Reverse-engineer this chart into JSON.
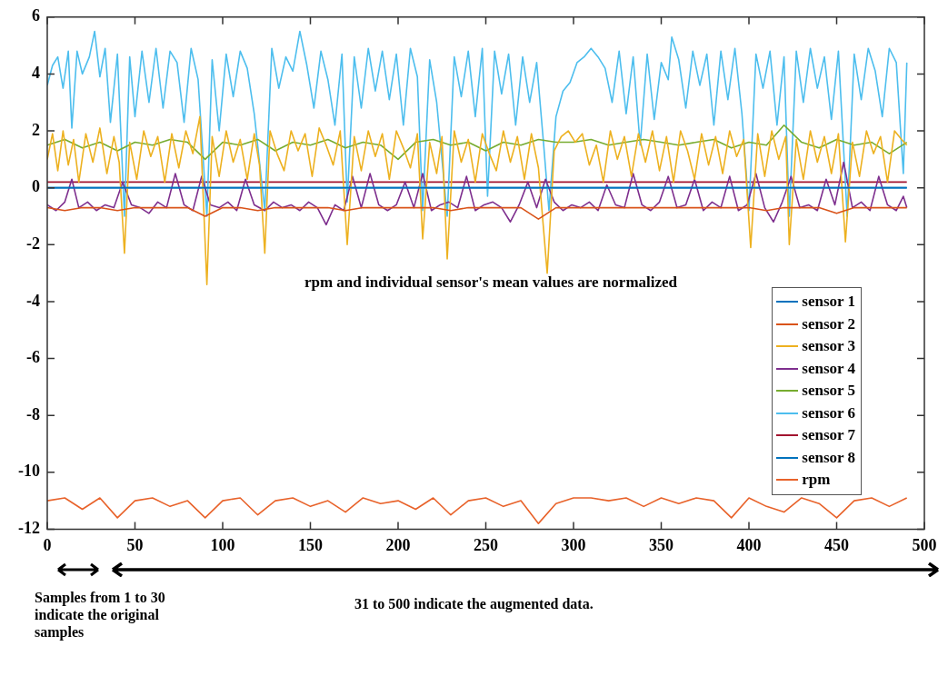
{
  "chart_data": {
    "type": "line",
    "xlim": [
      0,
      500
    ],
    "xticks": [
      0,
      50,
      100,
      150,
      200,
      250,
      300,
      350,
      400,
      450,
      500
    ],
    "ylim": [
      -12,
      6
    ],
    "yticks": [
      -12,
      -10,
      -8,
      -6,
      -4,
      -2,
      0,
      2,
      4,
      6
    ],
    "legend": "right",
    "annotations": [
      "rpm and individual sensor's mean values are normalized",
      "Samples from 1 to 30 indicate the original samples",
      "31 to 500 indicate the augmented data."
    ],
    "series": [
      {
        "name": "sensor 1",
        "color": "#0072bd",
        "x": [
          0,
          490
        ],
        "values": [
          0,
          0
        ]
      },
      {
        "name": "sensor 2",
        "color": "#d95319",
        "x": [
          0,
          10,
          20,
          30,
          40,
          50,
          60,
          70,
          80,
          90,
          100,
          110,
          120,
          130,
          140,
          150,
          160,
          170,
          180,
          190,
          200,
          210,
          220,
          230,
          240,
          250,
          260,
          270,
          280,
          290,
          300,
          310,
          320,
          330,
          340,
          350,
          360,
          370,
          380,
          390,
          400,
          410,
          420,
          430,
          440,
          450,
          460,
          470,
          480,
          490
        ],
        "values": [
          -0.7,
          -0.8,
          -0.7,
          -0.7,
          -0.8,
          -0.7,
          -0.7,
          -0.7,
          -0.7,
          -1.0,
          -0.7,
          -0.7,
          -0.8,
          -0.7,
          -0.7,
          -0.7,
          -0.7,
          -0.8,
          -0.7,
          -0.7,
          -0.7,
          -0.7,
          -0.7,
          -0.8,
          -0.7,
          -0.7,
          -0.7,
          -0.7,
          -1.1,
          -0.7,
          -0.7,
          -0.7,
          -0.7,
          -0.7,
          -0.7,
          -0.7,
          -0.7,
          -0.7,
          -0.7,
          -0.7,
          -0.7,
          -0.8,
          -0.7,
          -0.7,
          -0.7,
          -0.9,
          -0.7,
          -0.7,
          -0.7,
          -0.7
        ]
      },
      {
        "name": "sensor 3",
        "color": "#edb120",
        "x": [
          0,
          3,
          6,
          9,
          12,
          15,
          18,
          22,
          26,
          30,
          34,
          38,
          41,
          44,
          47,
          51,
          55,
          59,
          63,
          67,
          71,
          75,
          79,
          83,
          87,
          91,
          94,
          98,
          102,
          106,
          110,
          114,
          118,
          121,
          124,
          127,
          131,
          135,
          139,
          143,
          147,
          151,
          155,
          159,
          163,
          167,
          171,
          175,
          179,
          183,
          187,
          191,
          195,
          199,
          203,
          207,
          211,
          214,
          218,
          222,
          225,
          228,
          232,
          236,
          240,
          244,
          248,
          252,
          256,
          260,
          264,
          268,
          272,
          276,
          280,
          285,
          289,
          293,
          297,
          301,
          305,
          309,
          313,
          317,
          321,
          325,
          329,
          333,
          337,
          341,
          345,
          349,
          353,
          357,
          361,
          365,
          369,
          373,
          377,
          381,
          385,
          389,
          393,
          397,
          401,
          405,
          409,
          413,
          417,
          421,
          423,
          427,
          431,
          435,
          439,
          443,
          447,
          451,
          455,
          459,
          463,
          467,
          471,
          475,
          479,
          483,
          487,
          490
        ],
        "values": [
          1.0,
          1.9,
          0.6,
          2.0,
          0.8,
          1.7,
          0.2,
          1.9,
          0.9,
          2.1,
          0.5,
          1.8,
          0.9,
          -2.3,
          1.6,
          0.3,
          2.0,
          1.1,
          1.8,
          0.2,
          1.9,
          0.7,
          2.0,
          1.2,
          2.5,
          -3.4,
          1.8,
          0.4,
          2.0,
          0.9,
          1.7,
          0.3,
          1.9,
          0.8,
          -2.3,
          2.0,
          1.2,
          0.6,
          2.0,
          1.3,
          1.9,
          0.4,
          2.1,
          1.5,
          0.8,
          2.0,
          -2.0,
          1.8,
          0.6,
          2.0,
          1.1,
          1.9,
          0.3,
          2.0,
          1.4,
          0.7,
          1.9,
          -1.8,
          1.6,
          0.5,
          1.8,
          -2.5,
          2.0,
          0.9,
          1.7,
          0.2,
          1.9,
          1.2,
          0.6,
          2.0,
          0.9,
          1.8,
          0.3,
          1.9,
          0.7,
          -3.0,
          1.3,
          1.8,
          2.0,
          1.6,
          1.9,
          0.8,
          1.5,
          0.2,
          2.0,
          1.0,
          1.8,
          0.4,
          1.9,
          0.9,
          2.0,
          0.6,
          1.8,
          0.2,
          2.0,
          1.3,
          0.3,
          1.9,
          0.8,
          1.8,
          0.5,
          2.0,
          1.1,
          1.7,
          -2.1,
          1.9,
          0.4,
          2.0,
          1.0,
          1.8,
          -2.0,
          1.7,
          0.3,
          2.0,
          0.9,
          1.8,
          0.5,
          1.9,
          -1.9,
          1.6,
          0.4,
          2.0,
          1.2,
          1.8,
          0.2,
          2.0,
          1.7,
          1.5
        ]
      },
      {
        "name": "sensor 4",
        "color": "#7e2f8e",
        "x": [
          0,
          5,
          10,
          14,
          18,
          23,
          28,
          33,
          38,
          43,
          48,
          53,
          58,
          63,
          68,
          73,
          78,
          83,
          88,
          93,
          98,
          103,
          108,
          113,
          118,
          124,
          129,
          134,
          139,
          144,
          149,
          154,
          159,
          164,
          169,
          174,
          179,
          184,
          189,
          194,
          199,
          204,
          209,
          214,
          219,
          224,
          229,
          234,
          239,
          244,
          249,
          254,
          259,
          264,
          269,
          274,
          279,
          284,
          289,
          294,
          299,
          304,
          309,
          314,
          319,
          324,
          329,
          334,
          339,
          344,
          349,
          354,
          359,
          364,
          369,
          374,
          379,
          384,
          389,
          394,
          399,
          404,
          409,
          414,
          419,
          424,
          429,
          434,
          439,
          444,
          449,
          454,
          459,
          464,
          469,
          474,
          479,
          484,
          488,
          490
        ],
        "values": [
          -0.6,
          -0.8,
          -0.5,
          0.3,
          -0.7,
          -0.5,
          -0.8,
          -0.6,
          -0.7,
          0.2,
          -0.6,
          -0.7,
          -0.9,
          -0.5,
          -0.7,
          0.5,
          -0.6,
          -0.8,
          0.4,
          -0.6,
          -0.7,
          -0.5,
          -0.8,
          0.3,
          -0.6,
          -0.8,
          -0.5,
          -0.7,
          -0.6,
          -0.8,
          -0.5,
          -0.7,
          -1.3,
          -0.6,
          -0.8,
          0.4,
          -0.7,
          0.5,
          -0.6,
          -0.8,
          -0.6,
          0.2,
          -0.7,
          0.5,
          -0.8,
          -0.6,
          -0.5,
          -0.7,
          0.4,
          -0.8,
          -0.6,
          -0.5,
          -0.7,
          -1.2,
          -0.6,
          0.2,
          -0.7,
          0.3,
          -0.5,
          -0.8,
          -0.6,
          -0.7,
          -0.5,
          -0.8,
          0.1,
          -0.6,
          -0.7,
          0.5,
          -0.6,
          -0.8,
          -0.5,
          0.4,
          -0.7,
          -0.6,
          0.3,
          -0.8,
          -0.5,
          -0.7,
          0.4,
          -0.8,
          -0.6,
          0.5,
          -0.7,
          -1.2,
          -0.5,
          0.4,
          -0.7,
          -0.6,
          -0.8,
          0.3,
          -0.6,
          0.9,
          -0.7,
          -0.5,
          -0.8,
          0.4,
          -0.6,
          -0.8,
          -0.3,
          -0.7
        ]
      },
      {
        "name": "sensor 5",
        "color": "#77ac30",
        "x": [
          0,
          10,
          20,
          30,
          40,
          50,
          60,
          70,
          80,
          90,
          100,
          110,
          120,
          130,
          140,
          150,
          160,
          170,
          180,
          190,
          200,
          210,
          220,
          230,
          240,
          250,
          260,
          270,
          280,
          290,
          300,
          310,
          320,
          330,
          340,
          350,
          360,
          370,
          380,
          390,
          400,
          410,
          420,
          430,
          440,
          450,
          460,
          470,
          480,
          490
        ],
        "values": [
          1.5,
          1.7,
          1.4,
          1.6,
          1.3,
          1.6,
          1.5,
          1.7,
          1.6,
          1.0,
          1.6,
          1.5,
          1.7,
          1.3,
          1.6,
          1.5,
          1.7,
          1.4,
          1.6,
          1.5,
          1.0,
          1.6,
          1.7,
          1.5,
          1.6,
          1.3,
          1.6,
          1.5,
          1.7,
          1.6,
          1.6,
          1.7,
          1.5,
          1.6,
          1.7,
          1.6,
          1.5,
          1.6,
          1.7,
          1.4,
          1.6,
          1.5,
          2.2,
          1.6,
          1.4,
          1.7,
          1.5,
          1.6,
          1.2,
          1.6
        ]
      },
      {
        "name": "sensor 6",
        "color": "#4dbeee",
        "x": [
          0,
          3,
          6,
          9,
          12,
          14,
          17,
          20,
          24,
          27,
          30,
          33,
          36,
          40,
          44,
          47,
          50,
          54,
          58,
          62,
          66,
          70,
          74,
          78,
          82,
          86,
          91,
          94,
          98,
          102,
          106,
          110,
          114,
          118,
          124,
          128,
          132,
          136,
          140,
          144,
          148,
          152,
          156,
          160,
          164,
          168,
          171,
          175,
          179,
          183,
          187,
          191,
          195,
          199,
          203,
          207,
          211,
          214,
          218,
          222,
          228,
          232,
          236,
          240,
          244,
          248,
          251,
          255,
          259,
          263,
          267,
          271,
          275,
          279,
          283,
          286,
          290,
          294,
          298,
          302,
          306,
          310,
          314,
          318,
          322,
          326,
          330,
          334,
          338,
          342,
          346,
          350,
          354,
          356,
          360,
          364,
          368,
          372,
          376,
          380,
          384,
          388,
          392,
          396,
          400,
          404,
          408,
          412,
          416,
          420,
          423,
          427,
          431,
          435,
          439,
          443,
          447,
          451,
          456,
          460,
          464,
          468,
          472,
          476,
          480,
          484,
          488,
          490
        ],
        "values": [
          3.6,
          4.3,
          4.6,
          3.5,
          4.8,
          2.1,
          4.8,
          4.0,
          4.6,
          5.5,
          3.9,
          4.9,
          2.3,
          4.7,
          -1.0,
          4.6,
          2.5,
          4.8,
          3.0,
          4.9,
          2.8,
          4.8,
          4.4,
          2.3,
          4.9,
          3.8,
          -1.0,
          4.5,
          2.0,
          4.7,
          3.2,
          4.8,
          4.2,
          2.6,
          -0.8,
          4.9,
          3.5,
          4.6,
          4.1,
          5.5,
          4.3,
          2.8,
          4.8,
          3.8,
          2.2,
          4.7,
          -0.5,
          4.6,
          2.8,
          4.9,
          3.4,
          4.8,
          3.1,
          4.7,
          2.2,
          4.9,
          3.9,
          -0.8,
          4.5,
          3.0,
          -1.0,
          4.6,
          3.2,
          4.8,
          2.5,
          4.9,
          -0.3,
          4.8,
          3.3,
          4.7,
          2.2,
          4.6,
          3.0,
          4.4,
          1.5,
          -0.8,
          2.5,
          3.4,
          3.7,
          4.4,
          4.6,
          4.9,
          4.6,
          4.2,
          3.0,
          4.8,
          2.6,
          4.6,
          1.5,
          4.7,
          2.4,
          4.4,
          3.8,
          5.3,
          4.5,
          2.8,
          4.8,
          3.6,
          4.7,
          2.2,
          4.8,
          3.1,
          4.9,
          2.6,
          -0.8,
          4.7,
          3.5,
          4.8,
          2.2,
          4.6,
          -1.0,
          4.8,
          3.0,
          4.9,
          3.5,
          4.6,
          2.4,
          4.8,
          -1.0,
          4.7,
          3.1,
          4.9,
          4.1,
          2.5,
          4.9,
          4.4,
          0.5,
          4.4
        ]
      },
      {
        "name": "sensor 7",
        "color": "#a2142f",
        "x": [
          0,
          490
        ],
        "values": [
          0.2,
          0.2
        ]
      },
      {
        "name": "sensor 8",
        "color": "#0072bd",
        "x": [
          0,
          490
        ],
        "values": [
          0,
          0
        ]
      },
      {
        "name": "rpm",
        "color": "#e8622a",
        "x": [
          0,
          10,
          20,
          30,
          40,
          50,
          60,
          70,
          80,
          90,
          100,
          110,
          120,
          130,
          140,
          150,
          160,
          170,
          180,
          190,
          200,
          210,
          220,
          230,
          240,
          250,
          260,
          270,
          280,
          290,
          300,
          310,
          320,
          330,
          340,
          350,
          360,
          370,
          380,
          390,
          400,
          410,
          420,
          430,
          440,
          450,
          460,
          470,
          480,
          490
        ],
        "values": [
          -11.0,
          -10.9,
          -11.3,
          -10.9,
          -11.6,
          -11.0,
          -10.9,
          -11.2,
          -11.0,
          -11.6,
          -11.0,
          -10.9,
          -11.5,
          -11.0,
          -10.9,
          -11.2,
          -11.0,
          -11.4,
          -10.9,
          -11.1,
          -11.0,
          -11.3,
          -10.9,
          -11.5,
          -11.0,
          -10.9,
          -11.2,
          -11.0,
          -11.8,
          -11.1,
          -10.9,
          -10.9,
          -11.0,
          -10.9,
          -11.2,
          -10.9,
          -11.1,
          -10.9,
          -11.0,
          -11.6,
          -10.9,
          -11.2,
          -11.4,
          -10.9,
          -11.1,
          -11.6,
          -11.0,
          -10.9,
          -11.2,
          -10.9
        ]
      }
    ]
  }
}
